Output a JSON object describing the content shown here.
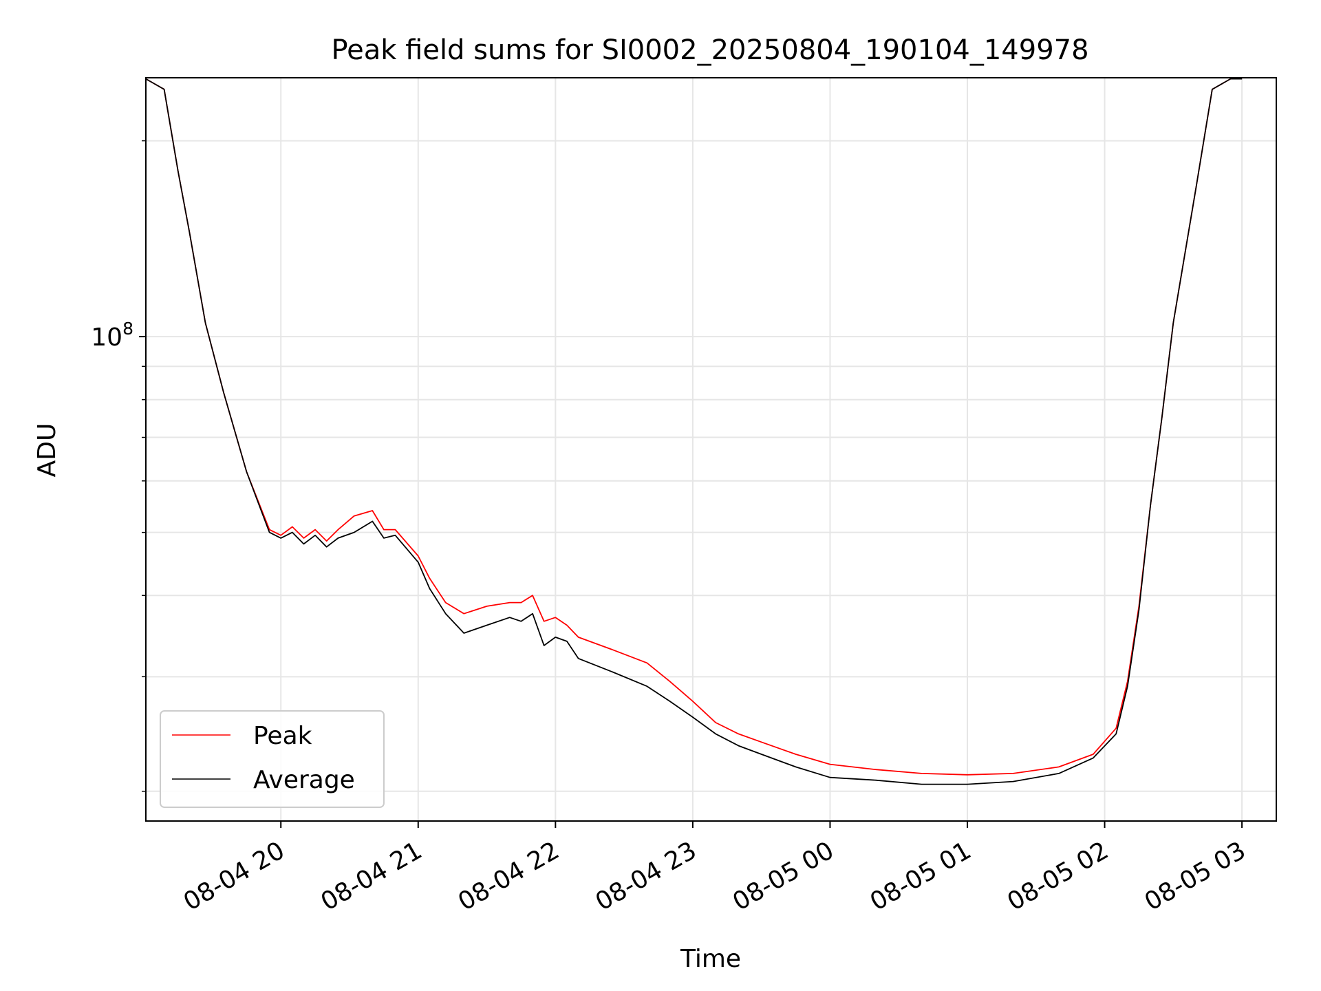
{
  "chart_data": {
    "type": "line",
    "title": "Peak field sums for SI0002_20250804_190104_149978",
    "xlabel": "Time",
    "ylabel": "ADU",
    "y_scale": "log",
    "x_ticks": [
      "08-04 20",
      "08-04 21",
      "08-04 22",
      "08-04 23",
      "08-05 00",
      "08-05 01",
      "08-05 02",
      "08-05 03"
    ],
    "x_tick_times": [
      "2025-08-04T20:00",
      "2025-08-04T21:00",
      "2025-08-04T22:00",
      "2025-08-04T23:00",
      "2025-08-05T00:00",
      "2025-08-05T01:00",
      "2025-08-05T02:00",
      "2025-08-05T03:00"
    ],
    "y_tick_label": {
      "base": "10",
      "exponent": "8"
    },
    "xlim": [
      "2025-08-04T19:01",
      "2025-08-05T03:15"
    ],
    "ylim": [
      18000000,
      250000000
    ],
    "grid": true,
    "legend_position": "lower-left",
    "series": [
      {
        "name": "Average",
        "color": "#000000",
        "x": [
          "2025-08-04T19:01",
          "2025-08-04T19:09",
          "2025-08-04T19:15",
          "2025-08-04T19:20",
          "2025-08-04T19:27",
          "2025-08-04T19:35",
          "2025-08-04T19:45",
          "2025-08-04T19:55",
          "2025-08-04T20:00",
          "2025-08-04T20:05",
          "2025-08-04T20:10",
          "2025-08-04T20:15",
          "2025-08-04T20:20",
          "2025-08-04T20:25",
          "2025-08-04T20:32",
          "2025-08-04T20:40",
          "2025-08-04T20:45",
          "2025-08-04T20:50",
          "2025-08-04T21:00",
          "2025-08-04T21:05",
          "2025-08-04T21:12",
          "2025-08-04T21:20",
          "2025-08-04T21:30",
          "2025-08-04T21:40",
          "2025-08-04T21:45",
          "2025-08-04T21:50",
          "2025-08-04T21:55",
          "2025-08-04T22:00",
          "2025-08-04T22:05",
          "2025-08-04T22:10",
          "2025-08-04T22:25",
          "2025-08-04T22:40",
          "2025-08-04T22:50",
          "2025-08-04T23:00",
          "2025-08-04T23:10",
          "2025-08-04T23:20",
          "2025-08-04T23:30",
          "2025-08-04T23:45",
          "2025-08-05T00:00",
          "2025-08-05T00:20",
          "2025-08-05T00:40",
          "2025-08-05T01:00",
          "2025-08-05T01:20",
          "2025-08-05T01:40",
          "2025-08-05T01:55",
          "2025-08-05T02:05",
          "2025-08-05T02:10",
          "2025-08-05T02:15",
          "2025-08-05T02:20",
          "2025-08-05T02:25",
          "2025-08-05T02:30",
          "2025-08-05T02:40",
          "2025-08-05T02:47",
          "2025-08-05T02:55",
          "2025-08-05T03:00"
        ],
        "y": [
          249000000,
          240000000,
          180000000,
          145000000,
          105000000,
          82000000,
          62000000,
          50000000,
          49000000,
          50000000,
          48000000,
          49500000,
          47500000,
          49000000,
          50000000,
          52000000,
          49000000,
          49500000,
          45000000,
          41000000,
          37500000,
          35000000,
          36000000,
          37000000,
          36500000,
          37500000,
          33500000,
          34500000,
          34000000,
          32000000,
          30500000,
          29000000,
          27500000,
          26000000,
          24500000,
          23500000,
          22800000,
          21800000,
          21000000,
          20800000,
          20500000,
          20500000,
          20700000,
          21300000,
          22500000,
          24500000,
          29000000,
          38000000,
          55000000,
          75000000,
          105000000,
          170000000,
          240000000,
          249000000,
          249000000
        ]
      },
      {
        "name": "Peak",
        "color": "#ff0000",
        "x": [
          "2025-08-04T19:01",
          "2025-08-04T19:09",
          "2025-08-04T19:15",
          "2025-08-04T19:20",
          "2025-08-04T19:27",
          "2025-08-04T19:35",
          "2025-08-04T19:45",
          "2025-08-04T19:55",
          "2025-08-04T20:00",
          "2025-08-04T20:05",
          "2025-08-04T20:10",
          "2025-08-04T20:15",
          "2025-08-04T20:20",
          "2025-08-04T20:25",
          "2025-08-04T20:32",
          "2025-08-04T20:40",
          "2025-08-04T20:45",
          "2025-08-04T20:50",
          "2025-08-04T21:00",
          "2025-08-04T21:05",
          "2025-08-04T21:12",
          "2025-08-04T21:20",
          "2025-08-04T21:30",
          "2025-08-04T21:40",
          "2025-08-04T21:45",
          "2025-08-04T21:50",
          "2025-08-04T21:55",
          "2025-08-04T22:00",
          "2025-08-04T22:05",
          "2025-08-04T22:10",
          "2025-08-04T22:25",
          "2025-08-04T22:40",
          "2025-08-04T22:50",
          "2025-08-04T23:00",
          "2025-08-04T23:10",
          "2025-08-04T23:20",
          "2025-08-04T23:30",
          "2025-08-04T23:45",
          "2025-08-05T00:00",
          "2025-08-05T00:20",
          "2025-08-05T00:40",
          "2025-08-05T01:00",
          "2025-08-05T01:20",
          "2025-08-05T01:40",
          "2025-08-05T01:55",
          "2025-08-05T02:05",
          "2025-08-05T02:10",
          "2025-08-05T02:15",
          "2025-08-05T02:20",
          "2025-08-05T02:25",
          "2025-08-05T02:30",
          "2025-08-05T02:40",
          "2025-08-05T02:47",
          "2025-08-05T02:55",
          "2025-08-05T03:00"
        ],
        "y": [
          249000000,
          240000000,
          180000000,
          145000000,
          105000000,
          82000000,
          62000000,
          50500000,
          49500000,
          51000000,
          49000000,
          50500000,
          48500000,
          50500000,
          53000000,
          54000000,
          50500000,
          50500000,
          46000000,
          42500000,
          39000000,
          37500000,
          38500000,
          39000000,
          39000000,
          40000000,
          36500000,
          37000000,
          36000000,
          34500000,
          33000000,
          31500000,
          29500000,
          27500000,
          25500000,
          24500000,
          23800000,
          22800000,
          22000000,
          21600000,
          21300000,
          21200000,
          21300000,
          21800000,
          22800000,
          25000000,
          29500000,
          38500000,
          55000000,
          75000000,
          105000000,
          170000000,
          240000000,
          249000000,
          249000000
        ]
      }
    ]
  }
}
